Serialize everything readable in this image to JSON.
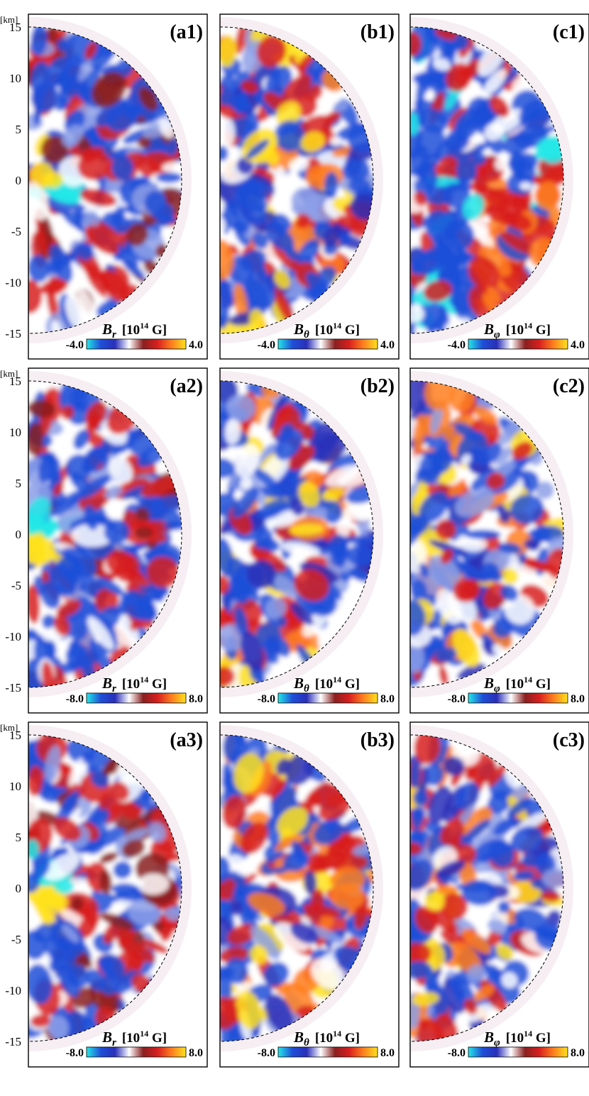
{
  "chart_data": {
    "type": "heatmap",
    "axis_unit": "[km]",
    "y_ticks": [
      15,
      10,
      5,
      0,
      -5,
      -10,
      -15
    ],
    "ylim": [
      -16,
      16
    ],
    "grid": false,
    "colorscale": [
      "#22e8e8",
      "#1f4fd8",
      "#2a2fb8",
      "#ffffff",
      "#8a1f1f",
      "#d81f1f",
      "#ff7f1f",
      "#ffe21f"
    ],
    "panels": [
      {
        "label": "(a1)",
        "component": "r",
        "unit": "[10",
        "exp": "14",
        "unit_tail": " G]",
        "cmin": "-4.0",
        "cmax": "4.0",
        "layout": "radial"
      },
      {
        "label": "(b1)",
        "component": "θ",
        "unit": "[10",
        "exp": "14",
        "unit_tail": " G]",
        "cmin": "-4.0",
        "cmax": "4.0",
        "layout": "patchy"
      },
      {
        "label": "(c1)",
        "component": "φ",
        "unit": "[10",
        "exp": "14",
        "unit_tail": " G]",
        "cmin": "-4.0",
        "cmax": "4.0",
        "layout": "blob-lower"
      },
      {
        "label": "(a2)",
        "component": "r",
        "unit": "[10",
        "exp": "14",
        "unit_tail": " G]",
        "cmin": "-8.0",
        "cmax": "8.0",
        "layout": "radial"
      },
      {
        "label": "(b2)",
        "component": "θ",
        "unit": "[10",
        "exp": "14",
        "unit_tail": " G]",
        "cmin": "-8.0",
        "cmax": "8.0",
        "layout": "patchy"
      },
      {
        "label": "(c2)",
        "component": "φ",
        "unit": "[10",
        "exp": "14",
        "unit_tail": " G]",
        "cmin": "-8.0",
        "cmax": "8.0",
        "layout": "patchy"
      },
      {
        "label": "(a3)",
        "component": "r",
        "unit": "[10",
        "exp": "14",
        "unit_tail": " G]",
        "cmin": "-8.0",
        "cmax": "8.0",
        "layout": "radial"
      },
      {
        "label": "(b3)",
        "component": "θ",
        "unit": "[10",
        "exp": "14",
        "unit_tail": " G]",
        "cmin": "-8.0",
        "cmax": "8.0",
        "layout": "patchy"
      },
      {
        "label": "(c3)",
        "component": "φ",
        "unit": "[10",
        "exp": "14",
        "unit_tail": " G]",
        "cmin": "-8.0",
        "cmax": "8.0",
        "layout": "patchy"
      }
    ]
  }
}
